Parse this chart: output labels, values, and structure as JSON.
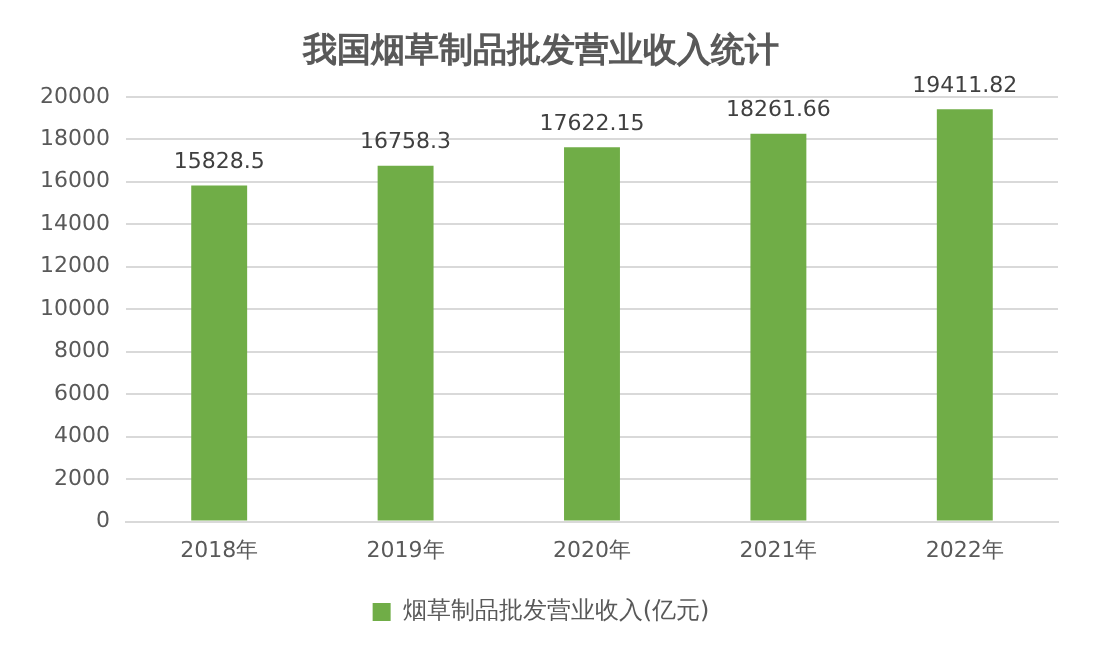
{
  "chart_data": {
    "type": "bar",
    "title": "我国烟草制品批发营业收入统计",
    "categories": [
      "2018年",
      "2019年",
      "2020年",
      "2021年",
      "2022年"
    ],
    "series": [
      {
        "name": "烟草制品批发营业收入(亿元)",
        "color": "#70ad47",
        "values": [
          15828.5,
          16758.3,
          17622.15,
          18261.66,
          19411.82
        ]
      }
    ],
    "ylim": [
      0,
      20000
    ],
    "yticks": [
      0,
      2000,
      4000,
      6000,
      8000,
      10000,
      12000,
      14000,
      16000,
      18000,
      20000
    ],
    "grid": "y",
    "legend": "bottom",
    "data_labels": true
  }
}
